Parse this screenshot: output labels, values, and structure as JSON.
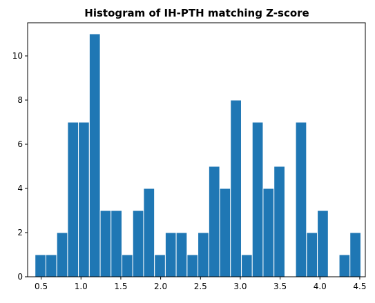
{
  "chart_data": {
    "type": "bar",
    "title": "Histogram of IH-PTH matching Z-score",
    "xlabel": "",
    "ylabel": "",
    "xlim": [
      0.33,
      4.57
    ],
    "ylim": [
      0,
      11.5
    ],
    "xticks": [
      0.5,
      1.0,
      1.5,
      2.0,
      2.5,
      3.0,
      3.5,
      4.0,
      4.5
    ],
    "xtick_labels": [
      "0.5",
      "1.0",
      "1.5",
      "2.0",
      "2.5",
      "3.0",
      "3.5",
      "4.0",
      "4.5"
    ],
    "yticks": [
      0,
      2,
      4,
      6,
      8,
      10
    ],
    "ytick_labels": [
      "0",
      "2",
      "4",
      "6",
      "8",
      "10"
    ],
    "grid": false,
    "legend": "none",
    "bar_color": "#1f77b4",
    "edge_color": "#ffffff",
    "bin_width": 0.1364,
    "bin_starts": [
      0.423,
      0.559,
      0.696,
      0.832,
      0.968,
      1.105,
      1.241,
      1.377,
      1.514,
      1.65,
      1.786,
      1.923,
      2.059,
      2.195,
      2.332,
      2.468,
      2.605,
      2.741,
      2.877,
      3.014,
      3.15,
      3.286,
      3.423,
      3.559,
      3.695,
      3.832,
      3.968,
      4.105,
      4.241,
      4.377
    ],
    "counts": [
      1,
      1,
      2,
      7,
      7,
      11,
      3,
      3,
      1,
      3,
      4,
      1,
      2,
      2,
      1,
      2,
      5,
      4,
      8,
      1,
      7,
      4,
      5,
      0,
      7,
      2,
      3,
      0,
      1,
      2
    ]
  }
}
